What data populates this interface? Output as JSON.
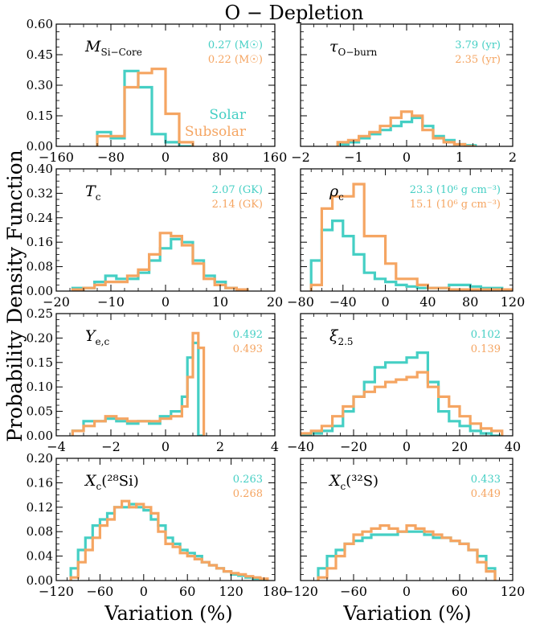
{
  "figure": {
    "title": "O − Depletion",
    "ylabel": "Probability Density Function",
    "xlabel": "Variation (%)",
    "colors": {
      "Solar": "#45cfc4",
      "Subsolar": "#f5a562"
    },
    "legend": {
      "series": [
        "Solar",
        "Subsolar"
      ],
      "placement": "first-panel-right"
    }
  },
  "chart_data": [
    {
      "type": "histogram",
      "panel": "si-core",
      "label_main": "M",
      "label_sub": "Si−Core",
      "xlim": [
        -160,
        160
      ],
      "ylim": [
        0,
        0.6
      ],
      "xticks": [
        -160,
        -80,
        0,
        80,
        160
      ],
      "yticks": [
        0.0,
        0.15,
        0.3,
        0.45,
        0.6
      ],
      "xtick_labels": [
        "−160",
        "−80",
        "0",
        "80",
        "160"
      ],
      "ytick_labels": [
        "0.00",
        "0.15",
        "0.30",
        "0.45",
        "0.60"
      ],
      "annotations": [
        {
          "series": "Solar",
          "text": "0.27 (M☉)"
        },
        {
          "series": "Subsolar",
          "text": "0.22 (M☉)"
        }
      ],
      "series": [
        {
          "name": "Solar",
          "bins": [
            -100,
            -80,
            -60,
            -40,
            -20,
            0,
            20,
            40
          ],
          "values": [
            0.07,
            0.04,
            0.37,
            0.29,
            0.06,
            0.02,
            0.0
          ]
        },
        {
          "name": "Subsolar",
          "bins": [
            -100,
            -80,
            -60,
            -40,
            -20,
            0,
            20,
            40
          ],
          "values": [
            0.05,
            0.05,
            0.29,
            0.36,
            0.38,
            0.16,
            0.02
          ]
        }
      ]
    },
    {
      "type": "histogram",
      "panel": "tau-o-burn",
      "label_main": "τ",
      "label_sub": "O−burn",
      "xlim": [
        -2,
        2
      ],
      "ylim": [
        0,
        0.6
      ],
      "xticks": [
        -2,
        -1,
        0,
        1,
        2
      ],
      "yticks": [
        0.0,
        0.15,
        0.3,
        0.45,
        0.6
      ],
      "xtick_labels": [
        "−2",
        "−1",
        "0",
        "1",
        "2"
      ],
      "ytick_labels": [],
      "annotations": [
        {
          "series": "Solar",
          "text": "3.79 (yr)"
        },
        {
          "series": "Subsolar",
          "text": "2.35 (yr)"
        }
      ],
      "series": [
        {
          "name": "Solar",
          "bins": [
            -1.3,
            -1.1,
            -0.9,
            -0.7,
            -0.5,
            -0.3,
            -0.1,
            0.1,
            0.3,
            0.5,
            0.7,
            0.9,
            1.1,
            1.3
          ],
          "values": [
            0.01,
            0.02,
            0.04,
            0.06,
            0.08,
            0.1,
            0.12,
            0.14,
            0.1,
            0.05,
            0.03,
            0.01,
            0.005
          ]
        },
        {
          "name": "Subsolar",
          "bins": [
            -1.3,
            -1.1,
            -0.9,
            -0.7,
            -0.5,
            -0.3,
            -0.1,
            0.1,
            0.3,
            0.5,
            0.7,
            0.9,
            1.1,
            1.3
          ],
          "values": [
            0.02,
            0.03,
            0.05,
            0.07,
            0.1,
            0.14,
            0.17,
            0.15,
            0.08,
            0.04,
            0.02,
            0.01,
            0.0
          ]
        }
      ]
    },
    {
      "type": "histogram",
      "panel": "tc",
      "label_main": "T",
      "label_sub": "c",
      "xlim": [
        -20,
        20
      ],
      "ylim": [
        0,
        0.4
      ],
      "xticks": [
        -20,
        -10,
        0,
        10,
        20
      ],
      "yticks": [
        0.0,
        0.08,
        0.16,
        0.24,
        0.32,
        0.4
      ],
      "xtick_labels": [
        "−20",
        "−10",
        "0",
        "10",
        "20"
      ],
      "ytick_labels": [
        "0.00",
        "0.08",
        "0.16",
        "0.24",
        "0.32",
        "0.40"
      ],
      "annotations": [
        {
          "series": "Solar",
          "text": "2.07 (GK)"
        },
        {
          "series": "Subsolar",
          "text": "2.14 (GK)"
        }
      ],
      "series": [
        {
          "name": "Solar",
          "bins": [
            -17,
            -15,
            -13,
            -11,
            -9,
            -7,
            -5,
            -3,
            -1,
            1,
            3,
            5,
            7,
            9,
            11,
            13,
            15
          ],
          "values": [
            0.01,
            0.01,
            0.03,
            0.05,
            0.04,
            0.04,
            0.06,
            0.1,
            0.14,
            0.17,
            0.16,
            0.1,
            0.05,
            0.03,
            0.01,
            0.005
          ]
        },
        {
          "name": "Subsolar",
          "bins": [
            -17,
            -15,
            -13,
            -11,
            -9,
            -7,
            -5,
            -3,
            -1,
            1,
            3,
            5,
            7,
            9,
            11,
            13,
            15
          ],
          "values": [
            0.005,
            0.01,
            0.02,
            0.03,
            0.03,
            0.05,
            0.07,
            0.12,
            0.19,
            0.18,
            0.15,
            0.09,
            0.04,
            0.02,
            0.01,
            0.005
          ]
        }
      ]
    },
    {
      "type": "histogram",
      "panel": "rho-c",
      "label_main": "ρ",
      "label_sub": "c",
      "xlim": [
        -80,
        120
      ],
      "ylim": [
        0,
        0.4
      ],
      "xticks": [
        -80,
        -40,
        0,
        40,
        80,
        120
      ],
      "yticks": [
        0.0,
        0.08,
        0.16,
        0.24,
        0.32,
        0.4
      ],
      "xtick_labels": [
        "−80",
        "−40",
        "0",
        "40",
        "80",
        "120"
      ],
      "ytick_labels": [],
      "annotations": [
        {
          "series": "Solar",
          "text": "23.3 (10⁶ g cm⁻³)"
        },
        {
          "series": "Subsolar",
          "text": "15.1 (10⁶ g cm⁻³)"
        }
      ],
      "series": [
        {
          "name": "Solar",
          "bins": [
            -70,
            -60,
            -50,
            -40,
            -30,
            -20,
            -10,
            0,
            10,
            20,
            30,
            40,
            50,
            60,
            70,
            80,
            90,
            100,
            110,
            120
          ],
          "values": [
            0.1,
            0.2,
            0.23,
            0.18,
            0.12,
            0.06,
            0.04,
            0.03,
            0.02,
            0.015,
            0.01,
            0.01,
            0.01,
            0.02,
            0.02,
            0.015,
            0.01,
            0.01,
            0.005
          ]
        },
        {
          "name": "Subsolar",
          "bins": [
            -70,
            -60,
            -50,
            -40,
            -30,
            -20,
            -10,
            0,
            10,
            20,
            30,
            40,
            50,
            60,
            70,
            80,
            90,
            100,
            110,
            120
          ],
          "values": [
            0.02,
            0.27,
            0.31,
            0.31,
            0.35,
            0.18,
            0.18,
            0.09,
            0.04,
            0.04,
            0.02,
            0.01,
            0.01,
            0.005,
            0.005,
            0.005,
            0.005,
            0.005,
            0.005
          ]
        }
      ]
    },
    {
      "type": "histogram",
      "panel": "ye-c",
      "label_main": "Y",
      "label_sub": "e,c",
      "xlim": [
        -4,
        4
      ],
      "ylim": [
        0,
        0.25
      ],
      "xticks": [
        -4,
        -2,
        0,
        2,
        4
      ],
      "yticks": [
        0.0,
        0.05,
        0.1,
        0.15,
        0.2,
        0.25
      ],
      "xtick_labels": [
        "−4",
        "−2",
        "0",
        "2",
        "4"
      ],
      "ytick_labels": [
        "0.00",
        "0.05",
        "0.10",
        "0.15",
        "0.20",
        "0.25"
      ],
      "annotations": [
        {
          "series": "Solar",
          "text": "0.492"
        },
        {
          "series": "Subsolar",
          "text": "0.493"
        }
      ],
      "series": [
        {
          "name": "Solar",
          "bins": [
            -3.4,
            -3.0,
            -2.6,
            -2.2,
            -1.8,
            -1.4,
            -1.0,
            -0.6,
            -0.2,
            0.2,
            0.6,
            0.8,
            1.0,
            1.2,
            1.4
          ],
          "values": [
            0.01,
            0.03,
            0.03,
            0.035,
            0.03,
            0.025,
            0.03,
            0.025,
            0.04,
            0.05,
            0.08,
            0.16,
            0.19,
            0.0
          ]
        },
        {
          "name": "Subsolar",
          "bins": [
            -3.4,
            -3.0,
            -2.6,
            -2.2,
            -1.8,
            -1.4,
            -1.0,
            -0.6,
            -0.2,
            0.2,
            0.6,
            0.8,
            1.0,
            1.2,
            1.4
          ],
          "values": [
            0.01,
            0.02,
            0.03,
            0.04,
            0.035,
            0.03,
            0.03,
            0.03,
            0.035,
            0.04,
            0.06,
            0.12,
            0.21,
            0.18
          ]
        }
      ]
    },
    {
      "type": "histogram",
      "panel": "xi-2-5",
      "label_main": "ξ",
      "label_sub": "2.5",
      "xlim": [
        -40,
        40
      ],
      "ylim": [
        0,
        0.25
      ],
      "xticks": [
        -40,
        -20,
        0,
        20,
        40
      ],
      "yticks": [
        0.0,
        0.05,
        0.1,
        0.15,
        0.2,
        0.25
      ],
      "xtick_labels": [
        "−40",
        "−20",
        "0",
        "20",
        "40"
      ],
      "ytick_labels": [],
      "annotations": [
        {
          "series": "Solar",
          "text": "0.102"
        },
        {
          "series": "Subsolar",
          "text": "0.139"
        }
      ],
      "series": [
        {
          "name": "Solar",
          "bins": [
            -40,
            -36,
            -32,
            -28,
            -24,
            -20,
            -16,
            -12,
            -8,
            -4,
            0,
            4,
            8,
            12,
            16,
            20,
            24,
            28,
            32,
            36
          ],
          "values": [
            0.0,
            0.005,
            0.01,
            0.02,
            0.05,
            0.08,
            0.11,
            0.14,
            0.15,
            0.15,
            0.16,
            0.17,
            0.11,
            0.05,
            0.03,
            0.02,
            0.01,
            0.005,
            0.0
          ]
        },
        {
          "name": "Subsolar",
          "bins": [
            -40,
            -36,
            -32,
            -28,
            -24,
            -20,
            -16,
            -12,
            -8,
            -4,
            0,
            4,
            8,
            12,
            16,
            20,
            24,
            28,
            32,
            36
          ],
          "values": [
            0.005,
            0.01,
            0.02,
            0.04,
            0.06,
            0.08,
            0.09,
            0.1,
            0.11,
            0.115,
            0.12,
            0.13,
            0.1,
            0.08,
            0.06,
            0.04,
            0.025,
            0.015,
            0.01
          ]
        }
      ]
    },
    {
      "type": "histogram",
      "panel": "xc-28si",
      "label_main": "X",
      "label_sub": "c",
      "label_suffix": "(²⁸Si)",
      "xlim": [
        -120,
        180
      ],
      "ylim": [
        0,
        0.2
      ],
      "xticks": [
        -120,
        -60,
        0,
        60,
        120,
        180
      ],
      "yticks": [
        0.0,
        0.04,
        0.08,
        0.12,
        0.16,
        0.2
      ],
      "xtick_labels": [
        "−120",
        "−60",
        "0",
        "60",
        "120",
        "180"
      ],
      "ytick_labels": [
        "0.00",
        "0.04",
        "0.08",
        "0.12",
        "0.16",
        "0.20"
      ],
      "annotations": [
        {
          "series": "Solar",
          "text": "0.263"
        },
        {
          "series": "Subsolar",
          "text": "0.268"
        }
      ],
      "series": [
        {
          "name": "Solar",
          "bins": [
            -100,
            -90,
            -80,
            -70,
            -60,
            -50,
            -40,
            -30,
            -20,
            -10,
            0,
            10,
            20,
            30,
            40,
            50,
            60,
            70,
            80,
            90,
            100,
            110,
            120,
            130,
            140,
            150,
            160,
            170
          ],
          "values": [
            0.02,
            0.05,
            0.07,
            0.09,
            0.1,
            0.11,
            0.12,
            0.12,
            0.125,
            0.12,
            0.115,
            0.1,
            0.09,
            0.07,
            0.06,
            0.05,
            0.045,
            0.04,
            0.03,
            0.025,
            0.02,
            0.015,
            0.01,
            0.008,
            0.005,
            0.003,
            0.002
          ]
        },
        {
          "name": "Subsolar",
          "bins": [
            -100,
            -90,
            -80,
            -70,
            -60,
            -50,
            -40,
            -30,
            -20,
            -10,
            0,
            10,
            20,
            30,
            40,
            50,
            60,
            70,
            80,
            90,
            100,
            110,
            120,
            130,
            140,
            150,
            160,
            170
          ],
          "values": [
            0.005,
            0.03,
            0.05,
            0.07,
            0.09,
            0.1,
            0.12,
            0.13,
            0.12,
            0.125,
            0.12,
            0.11,
            0.08,
            0.06,
            0.055,
            0.045,
            0.04,
            0.035,
            0.03,
            0.025,
            0.02,
            0.015,
            0.012,
            0.01,
            0.007,
            0.005,
            0.003
          ]
        }
      ]
    },
    {
      "type": "histogram",
      "panel": "xc-32s",
      "label_main": "X",
      "label_sub": "c",
      "label_suffix": "(³²S)",
      "xlim": [
        -120,
        120
      ],
      "ylim": [
        0,
        0.2
      ],
      "xticks": [
        -120,
        -60,
        0,
        60,
        120
      ],
      "yticks": [
        0.0,
        0.04,
        0.08,
        0.12,
        0.16,
        0.2
      ],
      "xtick_labels": [
        "−120",
        "−60",
        "0",
        "60",
        "120"
      ],
      "ytick_labels": [],
      "annotations": [
        {
          "series": "Solar",
          "text": "0.433"
        },
        {
          "series": "Subsolar",
          "text": "0.449"
        }
      ],
      "series": [
        {
          "name": "Solar",
          "bins": [
            -100,
            -90,
            -80,
            -70,
            -60,
            -50,
            -40,
            -30,
            -20,
            -10,
            0,
            10,
            20,
            30,
            40,
            50,
            60,
            70,
            80,
            90,
            100
          ],
          "values": [
            0.02,
            0.04,
            0.05,
            0.06,
            0.065,
            0.07,
            0.075,
            0.075,
            0.075,
            0.08,
            0.08,
            0.08,
            0.075,
            0.07,
            0.07,
            0.065,
            0.06,
            0.05,
            0.04,
            0.02
          ]
        },
        {
          "name": "Subsolar",
          "bins": [
            -100,
            -90,
            -80,
            -70,
            -60,
            -50,
            -40,
            -30,
            -20,
            -10,
            0,
            10,
            20,
            30,
            40,
            50,
            60,
            70,
            80,
            90,
            100
          ],
          "values": [
            0.005,
            0.02,
            0.04,
            0.06,
            0.075,
            0.08,
            0.085,
            0.09,
            0.085,
            0.08,
            0.09,
            0.085,
            0.08,
            0.075,
            0.07,
            0.065,
            0.06,
            0.05,
            0.03,
            0.015
          ]
        }
      ]
    }
  ]
}
